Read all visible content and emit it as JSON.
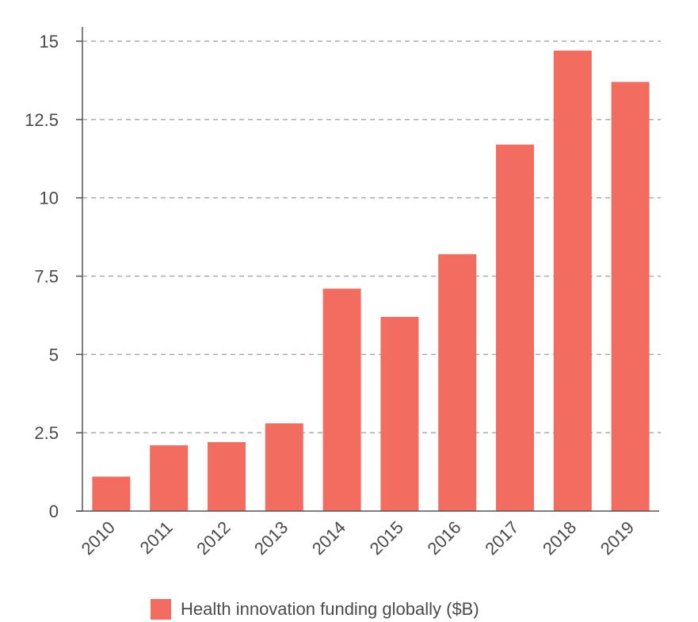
{
  "chart_data": {
    "type": "bar",
    "categories": [
      "2010",
      "2011",
      "2012",
      "2013",
      "2014",
      "2015",
      "2016",
      "2017",
      "2018",
      "2019"
    ],
    "series": [
      {
        "name": "Health innovation funding globally ($B)",
        "values": [
          1.1,
          2.1,
          2.2,
          2.8,
          7.1,
          6.2,
          8.2,
          11.7,
          14.7,
          13.7
        ]
      }
    ],
    "yticks": [
      "0",
      "2.5",
      "5",
      "7.5",
      "10",
      "12.5",
      "15"
    ],
    "ylim": [
      0,
      15
    ],
    "title": "",
    "xlabel": "",
    "ylabel": "",
    "grid": true,
    "legend_position": "bottom",
    "colors": {
      "bar": "#f26d5f",
      "grid": "#aaaaaa",
      "axis": "#555555"
    }
  }
}
